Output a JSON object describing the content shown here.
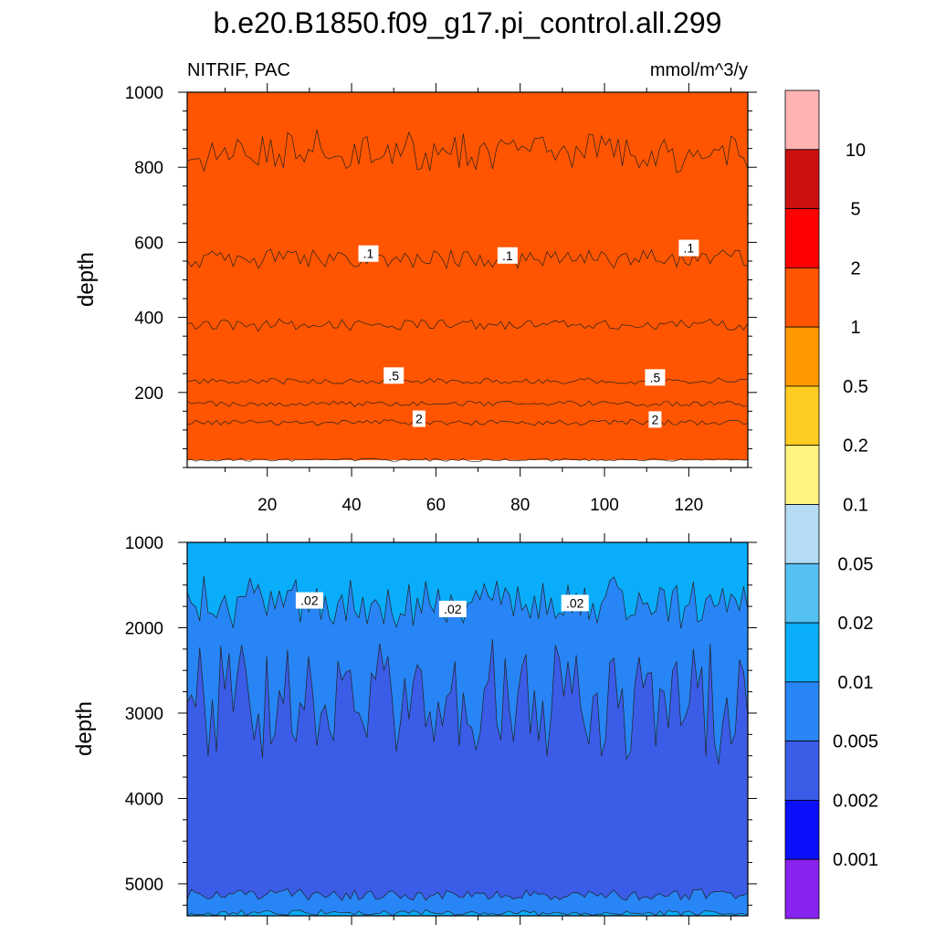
{
  "title": "b.e20.B1850.f09_g17.pi_control.all.299",
  "left_subtitle": "NITRIF, PAC",
  "right_subtitle": "mmol/m^3/y",
  "chart_data": [
    {
      "type": "contour",
      "panel": "upper",
      "ylabel": "depth",
      "xlim": [
        1,
        134
      ],
      "ylim": [
        1000,
        0
      ],
      "x_ticks": [
        20,
        40,
        60,
        80,
        100,
        120
      ],
      "y_ticks": [
        200,
        400,
        600,
        800,
        1000
      ],
      "bands": [
        {
          "from": 2,
          "to": 5,
          "top": 20,
          "bottom": 120
        },
        {
          "from": 1,
          "to": 2,
          "top": 120,
          "bottom": 170
        },
        {
          "from": 0.5,
          "to": 1,
          "top": 170,
          "bottom": 230
        },
        {
          "from": 0.2,
          "to": 0.5,
          "top": 230,
          "bottom": 380
        },
        {
          "from": 0.1,
          "to": 0.2,
          "top": 380,
          "bottom": 555
        },
        {
          "from": 0.05,
          "to": 0.1,
          "top": 555,
          "bottom": 840
        },
        {
          "from": 0.02,
          "to": 0.05,
          "top": 840,
          "bottom": 1000
        }
      ],
      "contour_labels": [
        {
          "text": "2",
          "x": 56,
          "y": 130
        },
        {
          "text": "2",
          "x": 112,
          "y": 128
        },
        {
          "text": ".5",
          "x": 50,
          "y": 245
        },
        {
          "text": ".5",
          "x": 112,
          "y": 240
        },
        {
          "text": ".1",
          "x": 44,
          "y": 570
        },
        {
          "text": ".1",
          "x": 77,
          "y": 565
        },
        {
          "text": ".1",
          "x": 120,
          "y": 585
        }
      ]
    },
    {
      "type": "contour",
      "panel": "lower",
      "ylabel": "depth",
      "xlim": [
        1,
        134
      ],
      "ylim": [
        1000,
        5375
      ],
      "y_ticks": [
        1000,
        2000,
        3000,
        4000,
        5000
      ],
      "bands": [
        {
          "from": 0.02,
          "to": 0.05,
          "top": 1000,
          "bottom": 1700
        },
        {
          "from": 0.01,
          "to": 0.02,
          "top": 1700,
          "bottom": 2850
        },
        {
          "from": 0.005,
          "to": 0.01,
          "top": 2850,
          "bottom": 5130
        },
        {
          "from": 0.01,
          "to": 0.02,
          "top": 5130,
          "bottom": 5340
        },
        {
          "from": 0.02,
          "to": 0.05,
          "top": 5340,
          "bottom": 5375
        }
      ],
      "contour_labels": [
        {
          "text": ".02",
          "x": 30,
          "y": 1680
        },
        {
          "text": ".02",
          "x": 64,
          "y": 1780
        },
        {
          "text": ".02",
          "x": 93,
          "y": 1710
        }
      ]
    }
  ],
  "colorbar": {
    "labels": [
      "10",
      "5",
      "2",
      "1",
      "0.5",
      "0.2",
      "0.1",
      "0.05",
      "0.02",
      "0.01",
      "0.005",
      "0.002",
      "0.001"
    ],
    "colors": [
      "#FFB3B3",
      "#CC1010",
      "#FF0000",
      "#FF5500",
      "#FF9900",
      "#FFCC22",
      "#FFF480",
      "#B4DCF5",
      "#55C0F2",
      "#0AADFA",
      "#2885F5",
      "#3A5CE6",
      "#0A10FA",
      "#8822EE"
    ]
  }
}
